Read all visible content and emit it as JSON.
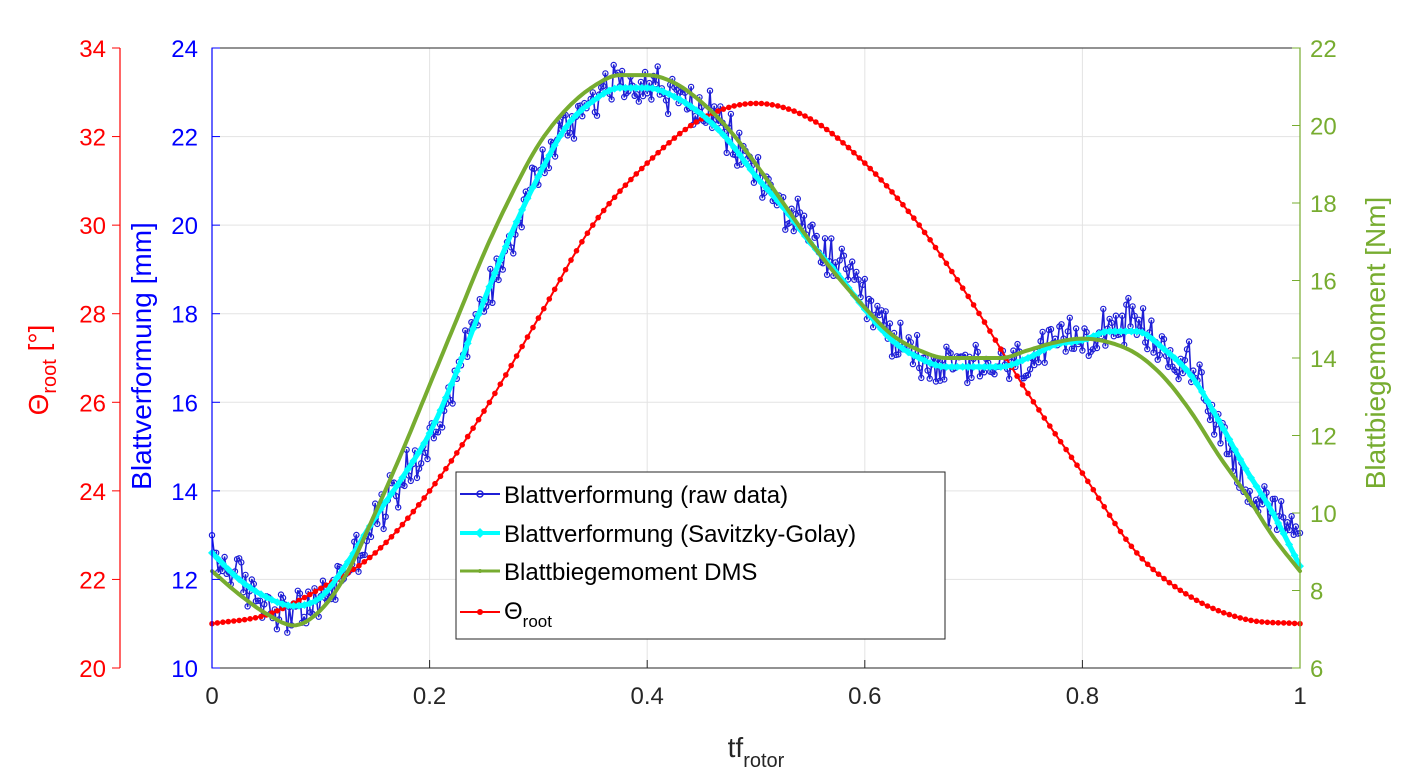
{
  "chart_data": {
    "type": "line",
    "xlabel": "tf",
    "xlabel_sub": "rotor",
    "xlim": [
      0,
      1
    ],
    "xticks": [
      0,
      0.2,
      0.4,
      0.6,
      0.8,
      1
    ],
    "xtick_labels": [
      "0",
      "0.2",
      "0.4",
      "0.6",
      "0.8",
      "1"
    ],
    "grid": true,
    "legend_position": "bottom-center",
    "axes": {
      "left_outer": {
        "label": "Θ",
        "label_sub": "root",
        "label_suffix": " [°]",
        "color": "#ff0000",
        "ylim": [
          20,
          34
        ],
        "ticks": [
          20,
          22,
          24,
          26,
          28,
          30,
          32,
          34
        ],
        "tick_labels": [
          "20",
          "22",
          "24",
          "26",
          "28",
          "30",
          "32",
          "34"
        ]
      },
      "left_inner": {
        "label": "Blattverformung [mm]",
        "color": "#0000ff",
        "ylim": [
          10,
          24
        ],
        "ticks": [
          10,
          12,
          14,
          16,
          18,
          20,
          22,
          24
        ],
        "tick_labels": [
          "10",
          "12",
          "14",
          "16",
          "18",
          "20",
          "22",
          "24"
        ]
      },
      "right": {
        "label": "Blattbiegemoment [Nm]",
        "color": "#77ac30",
        "ylim": [
          6,
          22
        ],
        "ticks": [
          6,
          8,
          10,
          12,
          14,
          16,
          18,
          20,
          22
        ],
        "tick_labels": [
          "6",
          "8",
          "10",
          "12",
          "14",
          "16",
          "18",
          "20",
          "22"
        ]
      }
    },
    "series": [
      {
        "name": "Blattverformung (raw data)",
        "axis": "left_inner",
        "color": "#1f1fd6",
        "style": "line-circle-markers",
        "noise_amplitude": 0.45,
        "x": [
          0.0,
          0.025,
          0.05,
          0.075,
          0.1,
          0.125,
          0.15,
          0.175,
          0.2,
          0.225,
          0.25,
          0.275,
          0.3,
          0.325,
          0.35,
          0.375,
          0.4,
          0.425,
          0.45,
          0.475,
          0.5,
          0.525,
          0.55,
          0.575,
          0.6,
          0.625,
          0.65,
          0.675,
          0.7,
          0.725,
          0.75,
          0.775,
          0.8,
          0.825,
          0.85,
          0.875,
          0.9,
          0.925,
          0.95,
          0.975,
          1.0
        ],
        "y": [
          12.6,
          12.0,
          11.5,
          11.3,
          11.5,
          12.3,
          13.3,
          14.3,
          15.1,
          16.7,
          18.3,
          19.8,
          21.2,
          22.2,
          22.9,
          23.2,
          23.2,
          22.9,
          22.6,
          22.0,
          21.2,
          20.4,
          19.7,
          19.1,
          18.3,
          17.5,
          17.1,
          16.8,
          16.8,
          16.8,
          16.9,
          17.2,
          17.5,
          17.8,
          17.7,
          17.1,
          16.8,
          15.5,
          14.2,
          13.4,
          13.2
        ]
      },
      {
        "name": "Blattverformung (Savitzky-Golay)",
        "axis": "left_inner",
        "color": "#00ffff",
        "style": "thick-line",
        "x": [
          0.0,
          0.025,
          0.05,
          0.075,
          0.1,
          0.125,
          0.15,
          0.175,
          0.2,
          0.225,
          0.25,
          0.275,
          0.3,
          0.325,
          0.35,
          0.375,
          0.4,
          0.425,
          0.45,
          0.475,
          0.5,
          0.525,
          0.55,
          0.575,
          0.6,
          0.625,
          0.65,
          0.675,
          0.7,
          0.725,
          0.75,
          0.775,
          0.8,
          0.825,
          0.85,
          0.875,
          0.9,
          0.925,
          0.95,
          0.975,
          1.0
        ],
        "y": [
          12.6,
          12.0,
          11.6,
          11.4,
          11.6,
          12.4,
          13.4,
          14.3,
          15.3,
          16.7,
          18.3,
          19.8,
          21.1,
          22.2,
          22.8,
          23.1,
          23.1,
          22.9,
          22.5,
          21.9,
          21.1,
          20.4,
          19.6,
          18.9,
          18.1,
          17.4,
          17.0,
          16.8,
          16.8,
          16.8,
          17.0,
          17.3,
          17.4,
          17.6,
          17.6,
          17.2,
          16.6,
          15.6,
          14.5,
          13.5,
          12.3
        ]
      },
      {
        "name": "Blattbiegemoment DMS",
        "axis": "right",
        "color": "#77ac30",
        "style": "thick-line",
        "x": [
          0.0,
          0.025,
          0.05,
          0.075,
          0.1,
          0.125,
          0.15,
          0.175,
          0.2,
          0.225,
          0.25,
          0.275,
          0.3,
          0.325,
          0.35,
          0.375,
          0.4,
          0.425,
          0.45,
          0.475,
          0.5,
          0.525,
          0.55,
          0.575,
          0.6,
          0.625,
          0.65,
          0.675,
          0.7,
          0.725,
          0.75,
          0.775,
          0.8,
          0.825,
          0.85,
          0.875,
          0.9,
          0.925,
          0.95,
          0.975,
          1.0
        ],
        "y": [
          8.5,
          7.9,
          7.4,
          7.1,
          7.5,
          8.5,
          10.0,
          11.6,
          13.3,
          15.0,
          16.7,
          18.2,
          19.5,
          20.4,
          21.0,
          21.3,
          21.3,
          21.1,
          20.6,
          19.9,
          19.0,
          18.0,
          17.0,
          16.1,
          15.3,
          14.6,
          14.2,
          14.0,
          14.0,
          14.0,
          14.2,
          14.4,
          14.5,
          14.4,
          14.1,
          13.5,
          12.6,
          11.5,
          10.5,
          9.4,
          8.5
        ]
      },
      {
        "name": "Θ",
        "name_sub": "root",
        "axis": "left_outer",
        "color": "#ff0000",
        "style": "line-dot-markers",
        "x": [
          0.0,
          0.05,
          0.1,
          0.15,
          0.2,
          0.25,
          0.3,
          0.35,
          0.4,
          0.45,
          0.5,
          0.55,
          0.6,
          0.65,
          0.7,
          0.75,
          0.8,
          0.85,
          0.9,
          0.95,
          1.0
        ],
        "y": [
          21.0,
          21.2,
          21.8,
          22.6,
          24.0,
          25.8,
          27.9,
          30.0,
          31.4,
          32.4,
          32.75,
          32.4,
          31.4,
          30.0,
          28.2,
          26.2,
          24.4,
          22.6,
          21.6,
          21.1,
          21.0
        ]
      }
    ]
  }
}
